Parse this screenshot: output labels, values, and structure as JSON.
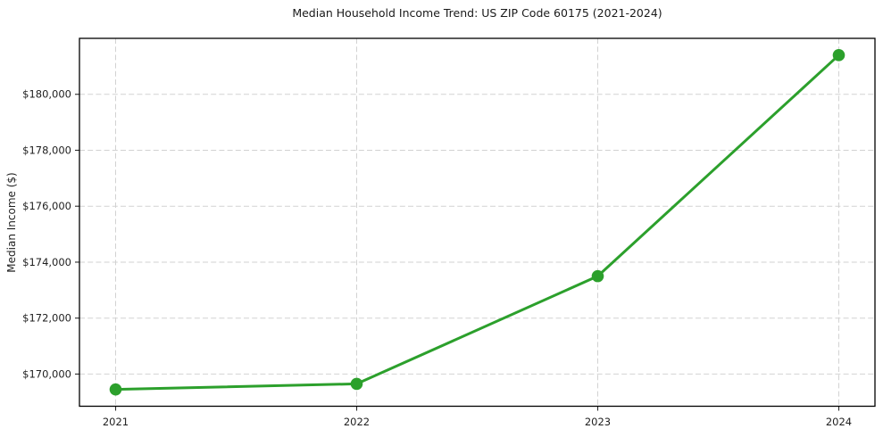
{
  "chart_data": {
    "type": "line",
    "title": "Median Household Income Trend: US ZIP Code 60175 (2021-2024)",
    "xlabel": "",
    "ylabel": "Median Income ($)",
    "x": [
      2021,
      2022,
      2023,
      2024
    ],
    "x_tick_labels": [
      "2021",
      "2022",
      "2023",
      "2024"
    ],
    "values": [
      169450,
      169650,
      173500,
      181400
    ],
    "y_ticks": [
      170000,
      172000,
      174000,
      176000,
      178000,
      180000
    ],
    "y_tick_labels": [
      "$170,000",
      "$172,000",
      "$174,000",
      "$176,000",
      "$178,000",
      "$180,000"
    ],
    "xlim": [
      2020.85,
      2024.15
    ],
    "ylim": [
      168850,
      182000
    ],
    "grid": true,
    "grid_line_style": "dashed",
    "legend": "none",
    "colors": {
      "line": "#2ca02c",
      "marker": "#2ca02c",
      "grid": "#d2d2d2",
      "axes_border": "#000000",
      "text": "#1f1f1f",
      "background": "#ffffff"
    },
    "line_width": 3,
    "marker": "circle",
    "marker_radius": 6.8
  }
}
